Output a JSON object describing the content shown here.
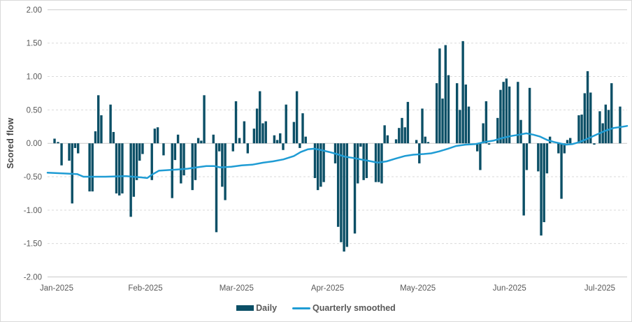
{
  "chart_data": {
    "type": "bar+line",
    "title": "",
    "ylabel": "Scored flow",
    "ylim": [
      -2.0,
      2.0
    ],
    "yticks": [
      2.0,
      1.5,
      1.0,
      0.5,
      0.0,
      -0.5,
      -1.0,
      -1.5,
      -2.0
    ],
    "ytick_labels": [
      "2.00",
      "1.50",
      "1.00",
      "0.50",
      "0.00",
      "-0.50",
      "-1.00",
      "-1.50",
      "-2.00"
    ],
    "grid": {
      "show": true,
      "dashed_color": "#d9d9d9",
      "solid_color": "#c9c9c9",
      "tick_text_color": "#595959"
    },
    "legend_position": "bottom-center",
    "x_axis": {
      "months": [
        {
          "label": "Jan-2025",
          "x": 0.0157
        },
        {
          "label": "Feb-2025",
          "x": 0.1689
        },
        {
          "label": "Mar-2025",
          "x": 0.3261
        },
        {
          "label": "Apr-2025",
          "x": 0.4831
        },
        {
          "label": "May-2025",
          "x": 0.6389
        },
        {
          "label": "Jun-2025",
          "x": 0.7971
        },
        {
          "label": "Jul-2025",
          "x": 0.9529
        }
      ]
    },
    "series": [
      {
        "name": "Daily",
        "type": "bar",
        "color": "#0b4f66",
        "points": [
          [
            0.0121,
            0.07
          ],
          [
            0.0181,
            0.02
          ],
          [
            0.0242,
            -0.33
          ],
          [
            0.0374,
            -0.26
          ],
          [
            0.0425,
            -0.9
          ],
          [
            0.0476,
            -0.07
          ],
          [
            0.0527,
            -0.15
          ],
          [
            0.0725,
            -0.72
          ],
          [
            0.0775,
            -0.72
          ],
          [
            0.0826,
            0.18
          ],
          [
            0.0877,
            0.72
          ],
          [
            0.0928,
            0.42
          ],
          [
            0.1087,
            0.58
          ],
          [
            0.1138,
            0.17
          ],
          [
            0.1188,
            -0.75
          ],
          [
            0.1239,
            -0.78
          ],
          [
            0.129,
            -0.75
          ],
          [
            0.1437,
            -1.1
          ],
          [
            0.1488,
            -0.8
          ],
          [
            0.1539,
            -0.55
          ],
          [
            0.1589,
            -0.26
          ],
          [
            0.164,
            -0.16
          ],
          [
            0.18,
            -0.55
          ],
          [
            0.185,
            0.22
          ],
          [
            0.1901,
            0.24
          ],
          [
            0.2002,
            -0.18
          ],
          [
            0.215,
            -0.82
          ],
          [
            0.22,
            -0.25
          ],
          [
            0.2251,
            0.13
          ],
          [
            0.2302,
            -0.6
          ],
          [
            0.2353,
            -0.48
          ],
          [
            0.25,
            -0.7
          ],
          [
            0.2551,
            -0.55
          ],
          [
            0.2601,
            0.08
          ],
          [
            0.2652,
            0.04
          ],
          [
            0.2703,
            0.72
          ],
          [
            0.2862,
            0.13
          ],
          [
            0.2913,
            -1.33
          ],
          [
            0.2964,
            -0.12
          ],
          [
            0.3014,
            -0.65
          ],
          [
            0.3065,
            -0.85
          ],
          [
            0.32,
            -0.12
          ],
          [
            0.3251,
            0.63
          ],
          [
            0.3312,
            0.08
          ],
          [
            0.3394,
            0.33
          ],
          [
            0.3454,
            -0.15
          ],
          [
            0.3563,
            0.22
          ],
          [
            0.3614,
            0.52
          ],
          [
            0.3664,
            0.78
          ],
          [
            0.3715,
            0.3
          ],
          [
            0.3766,
            0.33
          ],
          [
            0.3913,
            0.12
          ],
          [
            0.3964,
            0.05
          ],
          [
            0.4014,
            0.15
          ],
          [
            0.4065,
            -0.1
          ],
          [
            0.4116,
            0.58
          ],
          [
            0.4251,
            0.32
          ],
          [
            0.4302,
            0.78
          ],
          [
            0.4353,
            -0.07
          ],
          [
            0.4403,
            0.45
          ],
          [
            0.4454,
            0.1
          ],
          [
            0.4614,
            -0.52
          ],
          [
            0.4664,
            -0.7
          ],
          [
            0.4715,
            -0.65
          ],
          [
            0.4766,
            -0.58
          ],
          [
            0.4964,
            -0.3
          ],
          [
            0.5014,
            -1.25
          ],
          [
            0.5065,
            -1.48
          ],
          [
            0.5116,
            -1.62
          ],
          [
            0.5167,
            -1.55
          ],
          [
            0.5302,
            -1.35
          ],
          [
            0.5353,
            -0.6
          ],
          [
            0.5403,
            -0.05
          ],
          [
            0.5454,
            -0.55
          ],
          [
            0.5505,
            -0.52
          ],
          [
            0.5664,
            -0.58
          ],
          [
            0.5715,
            -0.58
          ],
          [
            0.5766,
            -0.6
          ],
          [
            0.5816,
            0.27
          ],
          [
            0.5867,
            0.12
          ],
          [
            0.6014,
            0.06
          ],
          [
            0.6065,
            0.23
          ],
          [
            0.6116,
            0.38
          ],
          [
            0.6167,
            0.24
          ],
          [
            0.6217,
            0.62
          ],
          [
            0.6365,
            0.05
          ],
          [
            0.6415,
            -0.3
          ],
          [
            0.6466,
            0.52
          ],
          [
            0.6517,
            0.1
          ],
          [
            0.6567,
            0.02
          ],
          [
            0.6715,
            0.9
          ],
          [
            0.6766,
            1.42
          ],
          [
            0.6816,
            0.67
          ],
          [
            0.6867,
            1.47
          ],
          [
            0.6918,
            1.02
          ],
          [
            0.7065,
            0.9
          ],
          [
            0.7116,
            0.5
          ],
          [
            0.7167,
            1.53
          ],
          [
            0.7217,
            0.88
          ],
          [
            0.7268,
            0.55
          ],
          [
            0.7415,
            -0.12
          ],
          [
            0.7466,
            -0.4
          ],
          [
            0.7517,
            0.3
          ],
          [
            0.7568,
            0.63
          ],
          [
            0.7618,
            -0.02
          ],
          [
            0.7766,
            0.38
          ],
          [
            0.7816,
            0.8
          ],
          [
            0.7867,
            0.92
          ],
          [
            0.7918,
            0.97
          ],
          [
            0.7969,
            0.85
          ],
          [
            0.8116,
            0.92
          ],
          [
            0.8167,
            0.35
          ],
          [
            0.8217,
            -1.08
          ],
          [
            0.8268,
            -0.4
          ],
          [
            0.8319,
            0.83
          ],
          [
            0.8466,
            -0.42
          ],
          [
            0.8517,
            -1.38
          ],
          [
            0.8567,
            -1.18
          ],
          [
            0.8618,
            -0.45
          ],
          [
            0.8669,
            0.1
          ],
          [
            0.8816,
            -0.15
          ],
          [
            0.8867,
            -0.83
          ],
          [
            0.8918,
            -0.15
          ],
          [
            0.8969,
            0.05
          ],
          [
            0.9019,
            0.08
          ],
          [
            0.9167,
            0.42
          ],
          [
            0.9217,
            0.43
          ],
          [
            0.9268,
            0.75
          ],
          [
            0.9319,
            1.08
          ],
          [
            0.937,
            0.76
          ],
          [
            0.9433,
            -0.02
          ],
          [
            0.9529,
            0.48
          ],
          [
            0.958,
            0.3
          ],
          [
            0.963,
            0.58
          ],
          [
            0.9681,
            0.5
          ],
          [
            0.9732,
            0.9
          ],
          [
            0.9879,
            0.55
          ]
        ]
      },
      {
        "name": "Quarterly smoothed",
        "type": "line",
        "color": "#1f9cd4",
        "points": [
          [
            0.0,
            -0.44
          ],
          [
            0.027,
            -0.45
          ],
          [
            0.051,
            -0.46
          ],
          [
            0.062,
            -0.5
          ],
          [
            0.1,
            -0.5
          ],
          [
            0.135,
            -0.49
          ],
          [
            0.162,
            -0.51
          ],
          [
            0.172,
            -0.52
          ],
          [
            0.18,
            -0.47
          ],
          [
            0.192,
            -0.41
          ],
          [
            0.208,
            -0.4
          ],
          [
            0.227,
            -0.39
          ],
          [
            0.242,
            -0.38
          ],
          [
            0.257,
            -0.36
          ],
          [
            0.274,
            -0.34
          ],
          [
            0.287,
            -0.34
          ],
          [
            0.298,
            -0.36
          ],
          [
            0.317,
            -0.35
          ],
          [
            0.335,
            -0.33
          ],
          [
            0.353,
            -0.32
          ],
          [
            0.372,
            -0.29
          ],
          [
            0.389,
            -0.27
          ],
          [
            0.407,
            -0.24
          ],
          [
            0.425,
            -0.19
          ],
          [
            0.437,
            -0.13
          ],
          [
            0.449,
            -0.09
          ],
          [
            0.46,
            -0.08
          ],
          [
            0.472,
            -0.1
          ],
          [
            0.486,
            -0.13
          ],
          [
            0.499,
            -0.16
          ],
          [
            0.513,
            -0.2
          ],
          [
            0.528,
            -0.22
          ],
          [
            0.54,
            -0.24
          ],
          [
            0.553,
            -0.26
          ],
          [
            0.57,
            -0.29
          ],
          [
            0.585,
            -0.27
          ],
          [
            0.6,
            -0.23
          ],
          [
            0.616,
            -0.19
          ],
          [
            0.631,
            -0.17
          ],
          [
            0.649,
            -0.16
          ],
          [
            0.662,
            -0.15
          ],
          [
            0.676,
            -0.12
          ],
          [
            0.691,
            -0.08
          ],
          [
            0.705,
            -0.04
          ],
          [
            0.721,
            -0.02
          ],
          [
            0.739,
            -0.01
          ],
          [
            0.754,
            0.02
          ],
          [
            0.769,
            0.04
          ],
          [
            0.785,
            0.08
          ],
          [
            0.8,
            0.11
          ],
          [
            0.814,
            0.13
          ],
          [
            0.826,
            0.15
          ],
          [
            0.838,
            0.13
          ],
          [
            0.85,
            0.1
          ],
          [
            0.862,
            0.05
          ],
          [
            0.874,
            0.02
          ],
          [
            0.884,
            0.0
          ],
          [
            0.894,
            -0.02
          ],
          [
            0.906,
            -0.01
          ],
          [
            0.918,
            0.02
          ],
          [
            0.932,
            0.07
          ],
          [
            0.947,
            0.13
          ],
          [
            0.963,
            0.19
          ],
          [
            0.977,
            0.23
          ],
          [
            0.993,
            0.25
          ],
          [
            1.0,
            0.26
          ]
        ]
      }
    ]
  }
}
